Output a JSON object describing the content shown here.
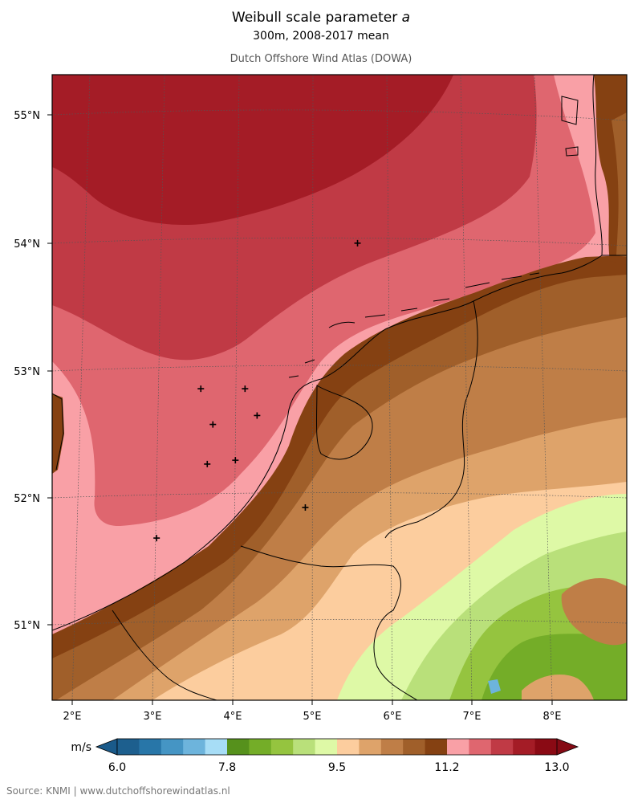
{
  "header": {
    "title_prefix": "Weibull scale parameter ",
    "title_symbol": "a",
    "subtitle": "300m, 2008-2017 mean",
    "source_line": "Dutch Offshore Wind Atlas (DOWA)"
  },
  "map": {
    "lat_labels": [
      "55°N",
      "54°N",
      "53°N",
      "52°N",
      "51°N"
    ],
    "lon_labels": [
      "2°E",
      "3°E",
      "4°E",
      "5°E",
      "6°E",
      "7°E",
      "8°E"
    ],
    "extent": {
      "lon_min": 1.75,
      "lon_max": 8.9,
      "lat_min": 50.42,
      "lat_max": 55.32
    },
    "markers": [
      {
        "lon": 5.55,
        "lat": 54.0
      },
      {
        "lon": 3.6,
        "lat": 52.86
      },
      {
        "lon": 4.15,
        "lat": 52.86
      },
      {
        "lon": 3.75,
        "lat": 52.58
      },
      {
        "lon": 4.3,
        "lat": 52.65
      },
      {
        "lon": 3.68,
        "lat": 52.27
      },
      {
        "lon": 4.03,
        "lat": 52.3
      },
      {
        "lon": 4.9,
        "lat": 51.93
      },
      {
        "lon": 3.05,
        "lat": 51.69
      }
    ]
  },
  "colorbar": {
    "unit": "m/s",
    "tick_labels": [
      "6.0",
      "7.8",
      "9.5",
      "11.2",
      "13.0"
    ],
    "colors": [
      "#1d5f8e",
      "#2876a8",
      "#4595c4",
      "#6db4dc",
      "#a7ddf6",
      "#56911c",
      "#74ad28",
      "#95c43f",
      "#b9e07a",
      "#def9a6",
      "#fccd9e",
      "#dea36a",
      "#bf7e47",
      "#a05f2a",
      "#854112",
      "#f9a0a6",
      "#df666f",
      "#c03a45",
      "#a41c26",
      "#8a0a14"
    ],
    "low_color": "#1a5a8a",
    "high_color": "#850a14"
  },
  "footer": {
    "source": "Source: KNMI | www.dutchoffshorewindatlas.nl"
  }
}
